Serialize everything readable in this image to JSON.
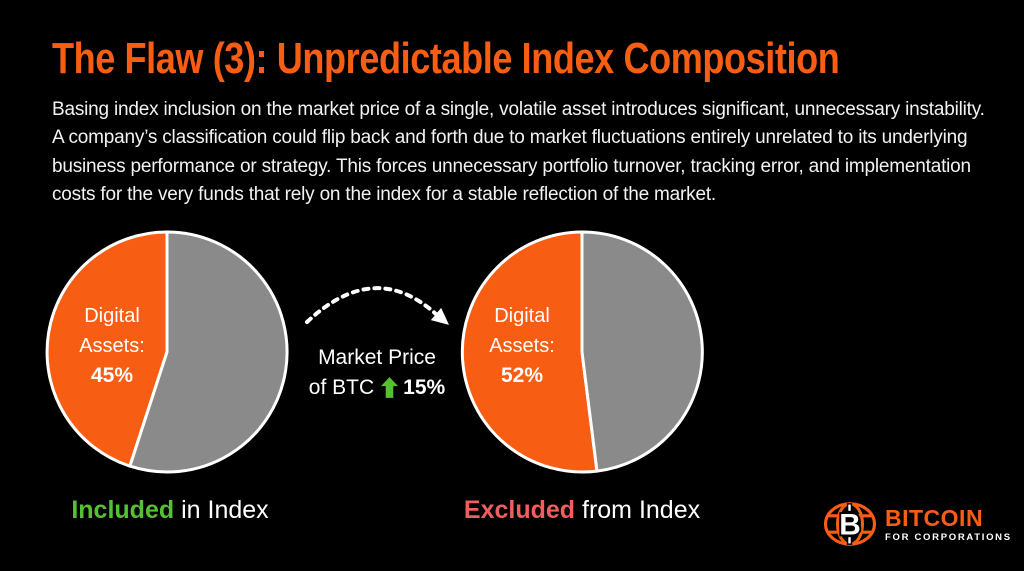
{
  "title": "The Flaw (3): Unpredictable Index Composition",
  "body": "Basing index inclusion on the market price of a single, volatile asset introduces significant, unnecessary instability. A company’s classification could flip back and forth due to market fluctuations entirely unrelated to its underlying business performance or strategy. This forces unnecessary portfolio turnover, tracking error, and implementation costs for the very funds that rely on the index for a stable reflection of the market.",
  "colors": {
    "background": "#000000",
    "orange": "#F85E13",
    "gray": "#8A8A8A",
    "green": "#56C033",
    "red": "#F15E5E",
    "text": "#F2F2F2",
    "stroke": "#FFFFFF"
  },
  "chart_data": [
    {
      "type": "pie",
      "caption_highlight": "Included",
      "caption_rest": "in Index",
      "label_lines": [
        "Digital",
        "Assets:"
      ],
      "value_label": "45%",
      "slices": [
        {
          "label": "Digital Assets",
          "value": 45,
          "color": "#F85E13"
        },
        {
          "label": "",
          "value": 55,
          "color": "#8A8A8A"
        }
      ]
    },
    {
      "type": "pie",
      "caption_highlight": "Excluded",
      "caption_rest": "from Index",
      "label_lines": [
        "Digital",
        "Assets:"
      ],
      "value_label": "52%",
      "slices": [
        {
          "label": "Digital Assets",
          "value": 52,
          "color": "#F85E13"
        },
        {
          "label": "",
          "value": 48,
          "color": "#8A8A8A"
        }
      ]
    }
  ],
  "transition": {
    "line1": "Market Price",
    "line2_prefix": "of BTC",
    "line2_value": "15%",
    "direction": "up"
  },
  "logo": {
    "brand": "BITCOIN",
    "sub": "FOR CORPORATIONS"
  }
}
